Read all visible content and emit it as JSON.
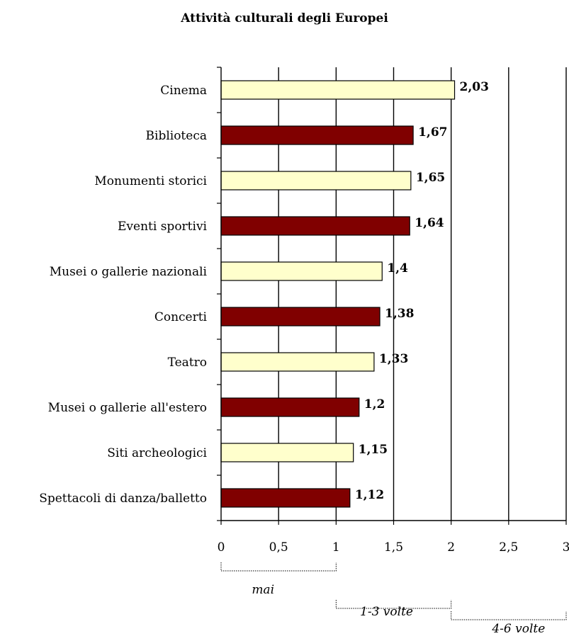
{
  "chart_data": {
    "type": "bar",
    "orientation": "horizontal",
    "title": "Attività culturali degli Europei",
    "categories": [
      "Cinema",
      "Biblioteca",
      "Monumenti storici",
      "Eventi sportivi",
      "Musei o gallerie nazionali",
      "Concerti",
      "Teatro",
      "Musei o gallerie all'estero",
      "Siti archeologici",
      "Spettacoli di danza/balletto"
    ],
    "values": [
      2.03,
      1.67,
      1.65,
      1.64,
      1.4,
      1.38,
      1.33,
      1.2,
      1.15,
      1.12
    ],
    "value_labels": [
      "2,03",
      "1,67",
      "1,65",
      "1,64",
      "1,4",
      "1,38",
      "1,33",
      "1,2",
      "1,15",
      "1,12"
    ],
    "xlim": [
      0,
      3
    ],
    "x_ticks": [
      0,
      0.5,
      1,
      1.5,
      2,
      2.5,
      3
    ],
    "x_tick_labels": [
      "0",
      "0,5",
      "1",
      "1,5",
      "2",
      "2,5",
      "3"
    ],
    "vertical_gridlines": [
      0.5,
      1,
      1.5,
      2,
      2.5,
      3
    ],
    "bar_colors": [
      "#FFFFCC",
      "#800000"
    ],
    "bar_outline": "#000000",
    "ranges": [
      {
        "label": "mai",
        "from": 0,
        "to": 1
      },
      {
        "label": "1-3 volte",
        "from": 1,
        "to": 2
      },
      {
        "label": "4-6 volte",
        "from": 2,
        "to": 3
      }
    ],
    "xlabel": "",
    "ylabel": ""
  }
}
